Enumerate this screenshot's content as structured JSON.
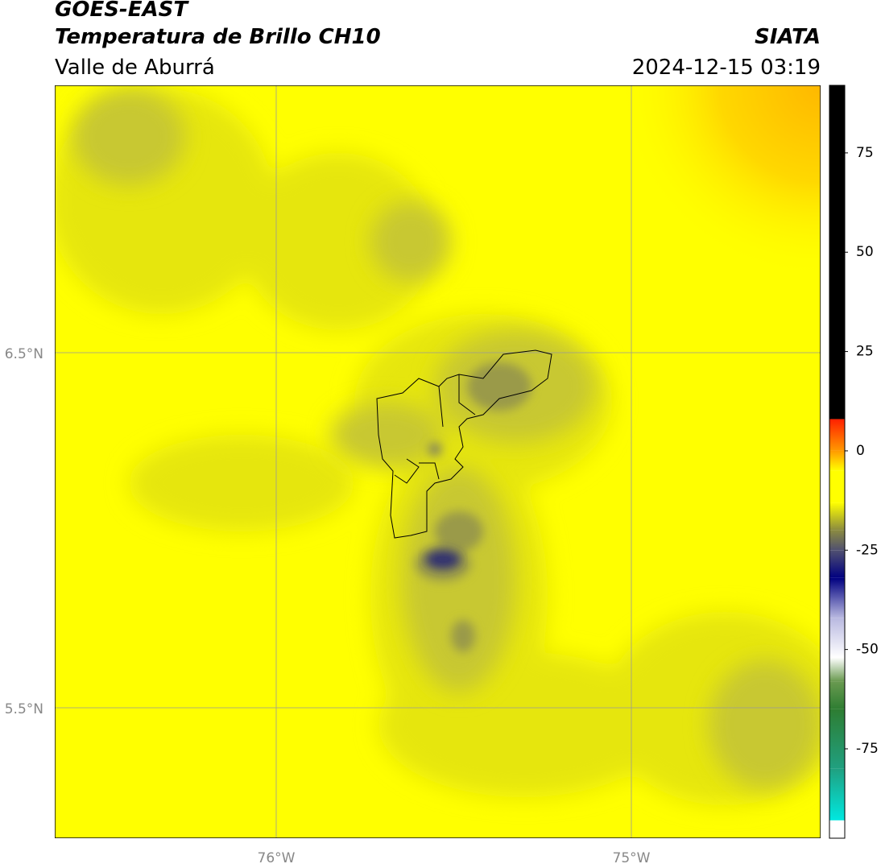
{
  "header": {
    "title": "GOES-EAST",
    "subtitle": "Temperatura de Brillo CH10",
    "region": "Valle de Aburrá",
    "source": "SIATA",
    "datetime": "2024-12-15 03:19"
  },
  "map": {
    "lat_labels": [
      "6.5°N",
      "5.5°N"
    ],
    "lon_labels": [
      "76°W",
      "75°W"
    ]
  },
  "colorbar": {
    "lim": [
      -97.5,
      92
    ],
    "ticks": [
      -75,
      -50,
      -25,
      0,
      25,
      50,
      75
    ],
    "stops": [
      {
        "value": -97.5,
        "color": "#ffffff"
      },
      {
        "value": -93,
        "color": "#ffffff"
      },
      {
        "value": -93,
        "color": "#00e8e0"
      },
      {
        "value": -80,
        "color": "#20a080"
      },
      {
        "value": -65,
        "color": "#2e7d32"
      },
      {
        "value": -58,
        "color": "#6a9a50"
      },
      {
        "value": -52,
        "color": "#ffffff"
      },
      {
        "value": -42,
        "color": "#b8b8e0"
      },
      {
        "value": -32,
        "color": "#000080"
      },
      {
        "value": -25,
        "color": "#505070"
      },
      {
        "value": -20,
        "color": "#8a8a40"
      },
      {
        "value": -13,
        "color": "#ffff00"
      },
      {
        "value": -5,
        "color": "#ffff00"
      },
      {
        "value": 0,
        "color": "#ff9900"
      },
      {
        "value": 8,
        "color": "#ff2000"
      },
      {
        "value": 8,
        "color": "#000000"
      },
      {
        "value": 92,
        "color": "#000000"
      }
    ]
  }
}
